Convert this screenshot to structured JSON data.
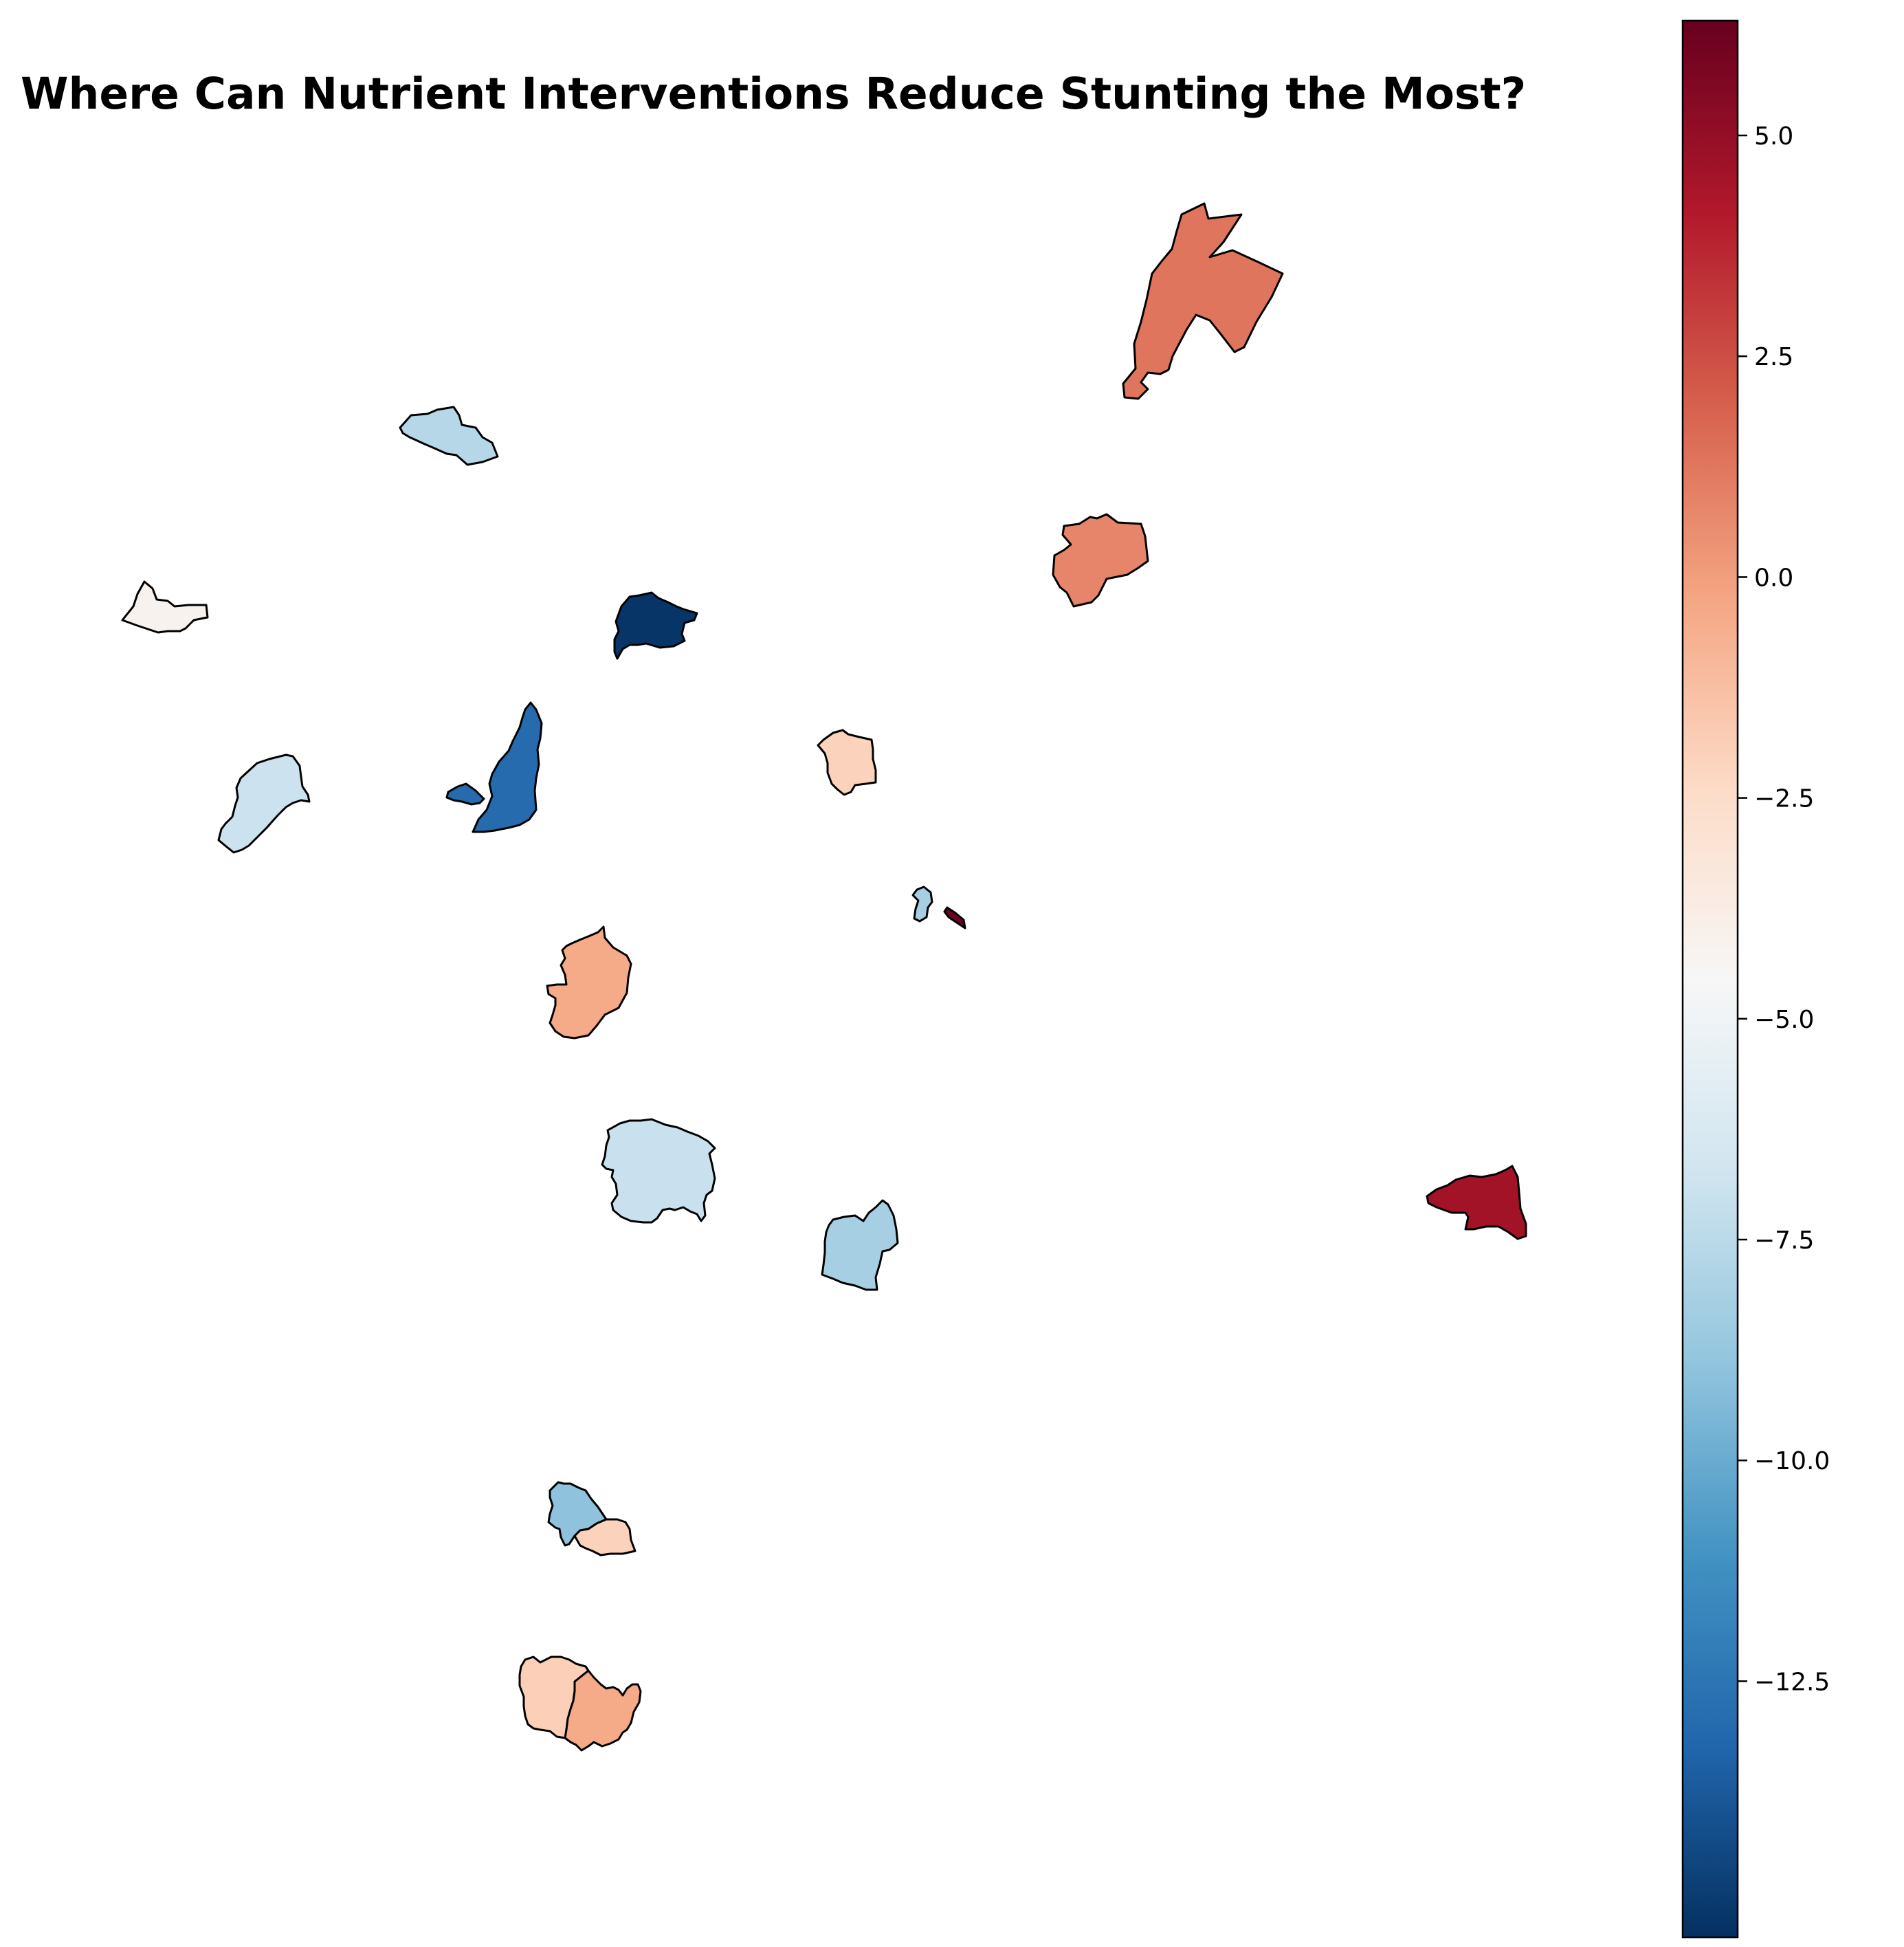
{
  "title": "Where Can Nutrient Interventions Reduce Stunting the Most?",
  "colorbar": {
    "colormap": "RdBu_r",
    "vmin": -15.4,
    "vmax": 6.3,
    "ticks": [
      5.0,
      2.5,
      0.0,
      -2.5,
      -5.0,
      -7.5,
      -10.0,
      -12.5
    ],
    "tick_labels": [
      "5.0",
      "2.5",
      "0.0",
      "−2.5",
      "−5.0",
      "−7.5",
      "−10.0",
      "−12.5"
    ]
  },
  "regions": [
    {
      "id": "north-east-large",
      "value": 1.3
    },
    {
      "id": "north-east-mid",
      "value": 0.8
    },
    {
      "id": "north-west-bar",
      "value": -7.7
    },
    {
      "id": "far-west",
      "value": -4.2
    },
    {
      "id": "central-north-dark",
      "value": -15.2
    },
    {
      "id": "central-elongated",
      "value": -13.0
    },
    {
      "id": "west-mid",
      "value": -6.9
    },
    {
      "id": "center-small",
      "value": -2.0
    },
    {
      "id": "tiny-left",
      "value": -8.2
    },
    {
      "id": "tiny-right",
      "value": 6.1
    },
    {
      "id": "central-south",
      "value": -0.4
    },
    {
      "id": "south-central-large",
      "value": -7.0
    },
    {
      "id": "south-east-mid",
      "value": -8.2
    },
    {
      "id": "far-east",
      "value": 4.6
    },
    {
      "id": "south-pair-left",
      "value": -9.0
    },
    {
      "id": "south-pair-right",
      "value": -2.0
    },
    {
      "id": "bottom-left",
      "value": -1.9
    },
    {
      "id": "bottom-right",
      "value": -0.4
    }
  ]
}
